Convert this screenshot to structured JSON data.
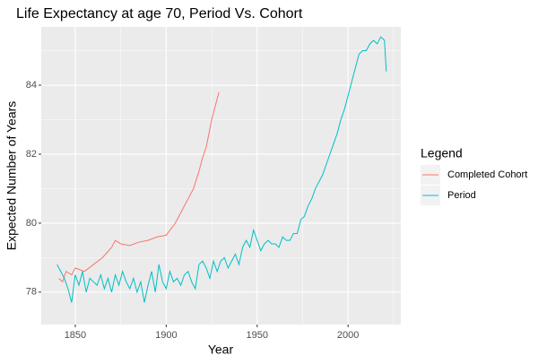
{
  "chart_data": {
    "type": "line",
    "title": "Life Expectancy at age 70, Period Vs. Cohort",
    "x_label": "Year",
    "y_label": "Expected Number of Years",
    "legend_title": "Legend",
    "legend_position": "right",
    "grid": true,
    "xlim": [
      1831.3,
      2029
    ],
    "ylim": [
      77.06,
      85.69
    ],
    "xticks": [
      1850,
      1900,
      1950,
      2000
    ],
    "yticks": [
      78,
      80,
      82,
      84
    ],
    "minor_xticks": [
      1875,
      1925,
      1975,
      2025
    ],
    "minor_yticks": [
      79,
      81,
      83,
      85
    ],
    "series": [
      {
        "name": "Completed Cohort",
        "color": "#f8766d",
        "x": [
          1841,
          1843,
          1845,
          1848,
          1850,
          1855,
          1860,
          1865,
          1870,
          1872,
          1875,
          1880,
          1885,
          1890,
          1895,
          1900,
          1905,
          1910,
          1915,
          1918,
          1920,
          1922,
          1925,
          1929
        ],
        "values": [
          78.4,
          78.3,
          78.6,
          78.5,
          78.7,
          78.6,
          78.8,
          79.0,
          79.3,
          79.5,
          79.4,
          79.35,
          79.45,
          79.5,
          79.6,
          79.65,
          80.0,
          80.5,
          81.0,
          81.5,
          81.9,
          82.2,
          83.0,
          83.8
        ]
      },
      {
        "name": "Period",
        "color": "#00bfc4",
        "x": [
          1840,
          1842,
          1844,
          1846,
          1848,
          1850,
          1852,
          1854,
          1856,
          1858,
          1860,
          1862,
          1864,
          1866,
          1868,
          1870,
          1872,
          1874,
          1876,
          1878,
          1880,
          1882,
          1884,
          1886,
          1888,
          1890,
          1892,
          1894,
          1896,
          1898,
          1900,
          1902,
          1904,
          1906,
          1908,
          1910,
          1912,
          1914,
          1916,
          1918,
          1920,
          1922,
          1924,
          1926,
          1928,
          1930,
          1932,
          1934,
          1936,
          1938,
          1940,
          1942,
          1944,
          1946,
          1948,
          1950,
          1952,
          1954,
          1956,
          1958,
          1960,
          1962,
          1964,
          1966,
          1968,
          1970,
          1972,
          1974,
          1976,
          1978,
          1980,
          1982,
          1984,
          1986,
          1988,
          1990,
          1992,
          1994,
          1996,
          1998,
          2000,
          2002,
          2004,
          2006,
          2008,
          2010,
          2012,
          2014,
          2016,
          2018,
          2020,
          2021
        ],
        "values": [
          78.8,
          78.6,
          78.4,
          78.1,
          77.7,
          78.5,
          78.2,
          78.6,
          78.0,
          78.4,
          78.3,
          78.2,
          78.5,
          78.1,
          78.4,
          78.0,
          78.5,
          78.2,
          78.6,
          78.3,
          78.1,
          78.4,
          78.0,
          78.3,
          77.7,
          78.2,
          78.6,
          78.0,
          78.8,
          78.3,
          78.1,
          78.6,
          78.3,
          78.4,
          78.2,
          78.5,
          78.6,
          78.3,
          78.1,
          78.8,
          78.9,
          78.7,
          78.4,
          78.9,
          78.6,
          78.9,
          79.0,
          78.7,
          78.9,
          79.1,
          78.8,
          79.3,
          79.5,
          79.3,
          79.8,
          79.5,
          79.2,
          79.4,
          79.5,
          79.4,
          79.4,
          79.3,
          79.6,
          79.5,
          79.5,
          79.7,
          79.7,
          80.1,
          80.2,
          80.5,
          80.7,
          81.0,
          81.2,
          81.4,
          81.7,
          82.0,
          82.3,
          82.6,
          83.0,
          83.3,
          83.7,
          84.1,
          84.5,
          84.9,
          85.0,
          85.0,
          85.2,
          85.3,
          85.2,
          85.4,
          85.3,
          84.4
        ]
      }
    ]
  }
}
